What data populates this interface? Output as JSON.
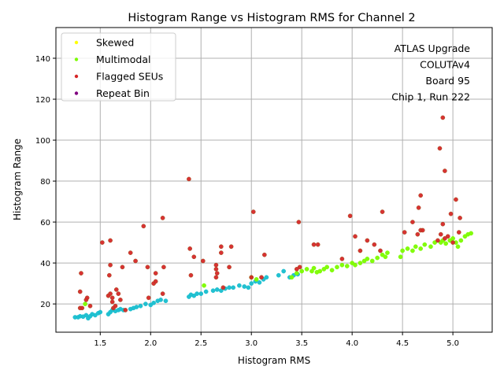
{
  "chart_data": {
    "type": "scatter",
    "title": "Histogram Range vs Histogram RMS for Channel 2",
    "xlabel": "Histogram RMS",
    "ylabel": "Histogram Range",
    "xlim": [
      1.06,
      5.39
    ],
    "ylim": [
      6.2,
      155
    ],
    "xticks": [
      "1.5",
      "2.0",
      "2.5",
      "3.0",
      "3.5",
      "4.0",
      "4.5",
      "5.0"
    ],
    "yticks": [
      "20",
      "40",
      "60",
      "80",
      "100",
      "120",
      "140"
    ],
    "grid": true,
    "legend_placement": "top-left",
    "annotation": [
      "ATLAS Upgrade",
      "COLUTAv4",
      "Board 95",
      "Chip 1, Run 222"
    ],
    "series": [
      {
        "color": "#17becf",
        "points": [
          [
            1.25,
            13.5
          ],
          [
            1.28,
            13.5
          ],
          [
            1.3,
            14
          ],
          [
            1.33,
            13.8
          ],
          [
            1.36,
            14.5
          ],
          [
            1.38,
            13
          ],
          [
            1.4,
            14
          ],
          [
            1.42,
            15
          ],
          [
            1.45,
            14.5
          ],
          [
            1.48,
            15.5
          ],
          [
            1.5,
            16
          ],
          [
            1.58,
            15
          ],
          [
            1.6,
            16
          ],
          [
            1.62,
            17
          ],
          [
            1.65,
            16.5
          ],
          [
            1.68,
            17
          ],
          [
            1.7,
            17.5
          ],
          [
            1.73,
            17
          ],
          [
            1.8,
            17.5
          ],
          [
            1.83,
            18
          ],
          [
            1.86,
            18.5
          ],
          [
            1.9,
            19
          ],
          [
            1.95,
            20
          ],
          [
            2.0,
            19.5
          ],
          [
            2.03,
            20.5
          ],
          [
            2.07,
            21.5
          ],
          [
            2.1,
            22
          ],
          [
            2.15,
            21.5
          ],
          [
            2.38,
            23.5
          ],
          [
            2.4,
            24.5
          ],
          [
            2.43,
            24
          ],
          [
            2.46,
            25
          ],
          [
            2.5,
            25
          ],
          [
            2.55,
            26
          ],
          [
            2.62,
            26.5
          ],
          [
            2.66,
            27
          ],
          [
            2.7,
            26.5
          ],
          [
            2.74,
            27.5
          ],
          [
            2.78,
            28
          ],
          [
            2.82,
            28
          ],
          [
            2.88,
            29
          ],
          [
            2.93,
            28.5
          ],
          [
            2.97,
            28
          ],
          [
            3.0,
            30
          ],
          [
            3.04,
            31
          ],
          [
            3.08,
            30.5
          ],
          [
            3.12,
            32
          ],
          [
            3.15,
            33
          ],
          [
            3.27,
            34
          ],
          [
            3.32,
            36
          ],
          [
            3.38,
            33
          ],
          [
            3.42,
            34
          ],
          [
            3.46,
            34.5
          ]
        ]
      },
      {
        "name": "Skewed",
        "color": "#ffff00",
        "points": []
      },
      {
        "name": "Multimodal",
        "color": "#7cfc00",
        "points": [
          [
            1.35,
            20
          ],
          [
            2.53,
            29
          ],
          [
            3.0,
            33
          ],
          [
            3.05,
            32
          ],
          [
            3.4,
            33
          ],
          [
            3.45,
            35
          ],
          [
            3.5,
            36
          ],
          [
            3.55,
            37
          ],
          [
            3.6,
            36
          ],
          [
            3.62,
            37.5
          ],
          [
            3.65,
            35.5
          ],
          [
            3.68,
            36
          ],
          [
            3.72,
            37
          ],
          [
            3.75,
            38
          ],
          [
            3.8,
            36.5
          ],
          [
            3.85,
            38
          ],
          [
            3.9,
            39
          ],
          [
            3.95,
            38.5
          ],
          [
            4.0,
            40
          ],
          [
            4.03,
            39
          ],
          [
            4.08,
            40
          ],
          [
            4.12,
            41
          ],
          [
            4.15,
            42
          ],
          [
            4.2,
            41
          ],
          [
            4.25,
            42.5
          ],
          [
            4.3,
            44
          ],
          [
            4.33,
            43
          ],
          [
            4.35,
            45
          ],
          [
            4.48,
            43
          ],
          [
            4.5,
            46
          ],
          [
            4.55,
            47
          ],
          [
            4.6,
            46
          ],
          [
            4.63,
            48
          ],
          [
            4.68,
            47
          ],
          [
            4.72,
            49
          ],
          [
            4.78,
            48
          ],
          [
            4.82,
            50
          ],
          [
            4.88,
            50
          ],
          [
            4.9,
            51
          ],
          [
            4.93,
            49.5
          ],
          [
            4.97,
            51
          ],
          [
            5.0,
            52
          ],
          [
            5.03,
            50
          ],
          [
            5.05,
            48
          ],
          [
            5.08,
            51
          ],
          [
            5.12,
            53
          ],
          [
            5.15,
            54
          ],
          [
            5.18,
            54.5
          ]
        ]
      },
      {
        "name": "Flagged SEUs",
        "color": "#d62728",
        "points": [
          [
            1.31,
            35
          ],
          [
            1.3,
            26
          ],
          [
            1.3,
            18
          ],
          [
            1.32,
            18
          ],
          [
            1.36,
            22
          ],
          [
            1.37,
            23
          ],
          [
            1.4,
            19
          ],
          [
            1.52,
            50
          ],
          [
            1.6,
            51
          ],
          [
            1.6,
            39
          ],
          [
            1.59,
            34
          ],
          [
            1.58,
            24
          ],
          [
            1.6,
            25
          ],
          [
            1.62,
            23
          ],
          [
            1.62,
            21
          ],
          [
            1.63,
            18
          ],
          [
            1.65,
            19
          ],
          [
            1.66,
            27
          ],
          [
            1.68,
            25
          ],
          [
            1.7,
            22
          ],
          [
            1.72,
            38
          ],
          [
            1.75,
            17
          ],
          [
            1.8,
            45
          ],
          [
            1.85,
            41
          ],
          [
            1.93,
            58
          ],
          [
            1.97,
            38
          ],
          [
            1.98,
            23
          ],
          [
            2.03,
            30
          ],
          [
            2.05,
            31
          ],
          [
            2.05,
            35
          ],
          [
            2.12,
            62
          ],
          [
            2.13,
            38
          ],
          [
            2.12,
            25
          ],
          [
            2.38,
            81
          ],
          [
            2.39,
            47
          ],
          [
            2.4,
            34
          ],
          [
            2.43,
            43
          ],
          [
            2.52,
            41
          ],
          [
            2.65,
            39
          ],
          [
            2.65,
            37
          ],
          [
            2.66,
            35
          ],
          [
            2.65,
            33
          ],
          [
            2.7,
            48
          ],
          [
            2.7,
            45
          ],
          [
            2.72,
            28
          ],
          [
            2.78,
            38
          ],
          [
            2.8,
            48
          ],
          [
            3.02,
            65
          ],
          [
            3.0,
            33
          ],
          [
            3.13,
            44
          ],
          [
            3.1,
            33
          ],
          [
            3.47,
            60
          ],
          [
            3.48,
            38
          ],
          [
            3.45,
            37
          ],
          [
            3.62,
            49
          ],
          [
            3.66,
            49
          ],
          [
            3.9,
            42
          ],
          [
            3.98,
            63
          ],
          [
            4.03,
            53
          ],
          [
            4.08,
            46
          ],
          [
            4.15,
            51
          ],
          [
            4.22,
            49
          ],
          [
            4.28,
            46
          ],
          [
            4.3,
            65
          ],
          [
            4.52,
            55
          ],
          [
            4.6,
            60
          ],
          [
            4.66,
            67
          ],
          [
            4.68,
            73
          ],
          [
            4.68,
            56
          ],
          [
            4.7,
            56
          ],
          [
            4.65,
            54
          ],
          [
            4.85,
            51
          ],
          [
            4.87,
            96
          ],
          [
            4.9,
            111
          ],
          [
            4.92,
            85
          ],
          [
            4.9,
            59
          ],
          [
            4.98,
            64
          ],
          [
            5.03,
            71
          ],
          [
            5.07,
            62
          ],
          [
            5.06,
            55
          ],
          [
            4.88,
            54
          ],
          [
            4.92,
            52
          ],
          [
            4.95,
            53
          ],
          [
            5.0,
            50
          ]
        ]
      },
      {
        "name": "Repeat Bin",
        "color": "#800080",
        "points": []
      }
    ]
  }
}
